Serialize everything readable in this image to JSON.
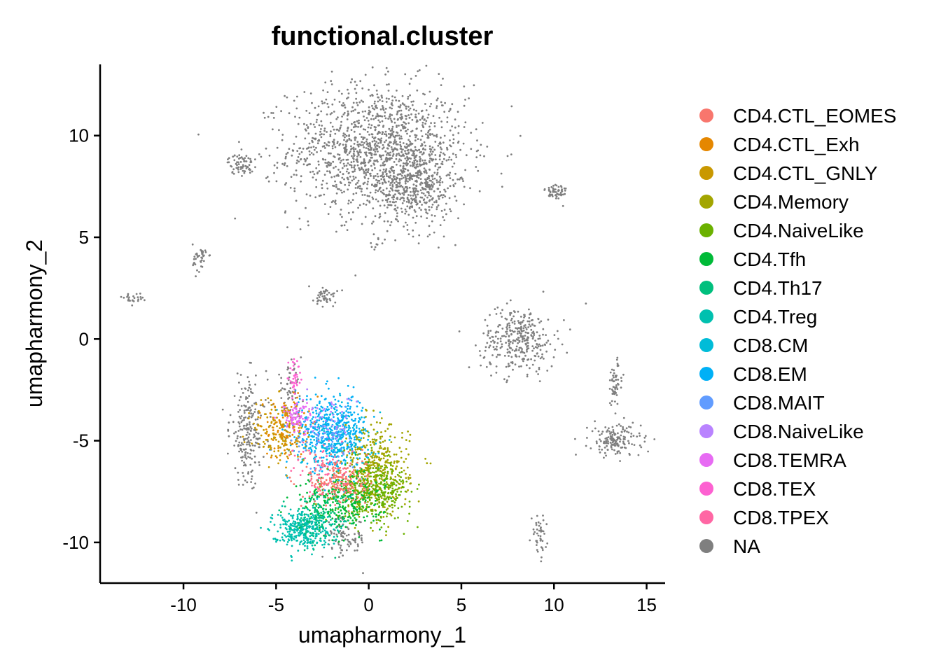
{
  "chart_data": {
    "type": "scatter",
    "title": "functional.cluster",
    "xlabel": "umapharmony_1",
    "ylabel": "umapharmony_2",
    "xlim": [
      -14.5,
      16
    ],
    "ylim": [
      -12,
      13.5
    ],
    "xticks": [
      -10,
      -5,
      0,
      5,
      10,
      15
    ],
    "yticks": [
      -10,
      -5,
      0,
      5,
      10
    ],
    "xtick_labels": [
      "-10",
      "-5",
      "0",
      "5",
      "10",
      "15"
    ],
    "ytick_labels": [
      "-10",
      "-5",
      "0",
      "5",
      "10"
    ],
    "grid": false,
    "legend_position": "right",
    "legend": [
      {
        "label": "CD4.CTL_EOMES",
        "color": "#F8766D"
      },
      {
        "label": "CD4.CTL_Exh",
        "color": "#E58700"
      },
      {
        "label": "CD4.CTL_GNLY",
        "color": "#C99800"
      },
      {
        "label": "CD4.Memory",
        "color": "#A3A500"
      },
      {
        "label": "CD4.NaiveLike",
        "color": "#6BB100"
      },
      {
        "label": "CD4.Tfh",
        "color": "#00BA38"
      },
      {
        "label": "CD4.Th17",
        "color": "#00BF7D"
      },
      {
        "label": "CD4.Treg",
        "color": "#00C0AF"
      },
      {
        "label": "CD8.CM",
        "color": "#00BCD8"
      },
      {
        "label": "CD8.EM",
        "color": "#00B0F6"
      },
      {
        "label": "CD8.MAIT",
        "color": "#619CFF"
      },
      {
        "label": "CD8.NaiveLike",
        "color": "#B983FF"
      },
      {
        "label": "CD8.TEMRA",
        "color": "#E76BF3"
      },
      {
        "label": "CD8.TEX",
        "color": "#FD61D1"
      },
      {
        "label": "CD8.TPEX",
        "color": "#FF67A4"
      },
      {
        "label": "NA",
        "color": "#7F7F7F"
      }
    ],
    "clusters": [
      {
        "label": "NA",
        "cx": 0.5,
        "cy": 9.3,
        "sx": 2.4,
        "sy": 1.6,
        "n": 1400
      },
      {
        "label": "NA",
        "cx": 2.6,
        "cy": 7.5,
        "sx": 1.0,
        "sy": 1.0,
        "n": 350
      },
      {
        "label": "NA",
        "cx": -6.9,
        "cy": 8.6,
        "sx": 0.35,
        "sy": 0.25,
        "n": 70
      },
      {
        "label": "NA",
        "cx": 10.1,
        "cy": 7.2,
        "sx": 0.3,
        "sy": 0.25,
        "n": 60
      },
      {
        "label": "NA",
        "cx": -9.1,
        "cy": 4.0,
        "sx": 0.2,
        "sy": 0.35,
        "n": 40
      },
      {
        "label": "NA",
        "cx": 0.5,
        "cy": 4.6,
        "sx": 0.2,
        "sy": 0.2,
        "n": 10
      },
      {
        "label": "NA",
        "cx": -2.3,
        "cy": 2.1,
        "sx": 0.3,
        "sy": 0.25,
        "n": 45
      },
      {
        "label": "NA",
        "cx": -12.8,
        "cy": 2.0,
        "sx": 0.3,
        "sy": 0.12,
        "n": 25
      },
      {
        "label": "NA",
        "cx": 8.1,
        "cy": 0.0,
        "sx": 1.0,
        "sy": 0.8,
        "n": 330
      },
      {
        "label": "NA",
        "cx": 13.3,
        "cy": -5.0,
        "sx": 0.7,
        "sy": 0.4,
        "n": 160
      },
      {
        "label": "NA",
        "cx": 13.3,
        "cy": -2.2,
        "sx": 0.2,
        "sy": 0.6,
        "n": 55
      },
      {
        "label": "NA",
        "cx": 9.2,
        "cy": -9.7,
        "sx": 0.2,
        "sy": 0.5,
        "n": 45
      },
      {
        "label": "NA",
        "cx": -6.5,
        "cy": -4.5,
        "sx": 0.5,
        "sy": 1.3,
        "n": 230
      },
      {
        "label": "NA",
        "cx": -4.3,
        "cy": -2.6,
        "sx": 0.35,
        "sy": 0.6,
        "n": 60
      },
      {
        "label": "NA",
        "cx": -1.3,
        "cy": -9.8,
        "sx": 0.6,
        "sy": 0.5,
        "n": 90
      },
      {
        "label": "CD8.EM",
        "cx": -2.0,
        "cy": -4.6,
        "sx": 1.0,
        "sy": 0.9,
        "n": 520
      },
      {
        "label": "CD8.CM",
        "cx": -1.5,
        "cy": -5.2,
        "sx": 1.0,
        "sy": 1.0,
        "n": 150
      },
      {
        "label": "CD4.Memory",
        "cx": 0.4,
        "cy": -6.5,
        "sx": 0.9,
        "sy": 1.1,
        "n": 420
      },
      {
        "label": "CD4.NaiveLike",
        "cx": 0.3,
        "cy": -7.5,
        "sx": 1.0,
        "sy": 0.7,
        "n": 360
      },
      {
        "label": "CD4.Tfh",
        "cx": -1.5,
        "cy": -8.0,
        "sx": 1.1,
        "sy": 0.7,
        "n": 280
      },
      {
        "label": "CD4.CTL_EOMES",
        "cx": -1.7,
        "cy": -7.0,
        "sx": 0.8,
        "sy": 0.6,
        "n": 200
      },
      {
        "label": "CD4.CTL_GNLY",
        "cx": -4.8,
        "cy": -4.6,
        "sx": 0.7,
        "sy": 0.9,
        "n": 160
      },
      {
        "label": "CD4.CTL_Exh",
        "cx": -4.4,
        "cy": -4.3,
        "sx": 0.6,
        "sy": 0.8,
        "n": 100
      },
      {
        "label": "CD4.Treg",
        "cx": -3.6,
        "cy": -9.3,
        "sx": 0.8,
        "sy": 0.45,
        "n": 340
      },
      {
        "label": "CD4.Th17",
        "cx": -2.6,
        "cy": -8.7,
        "sx": 0.8,
        "sy": 0.6,
        "n": 120
      },
      {
        "label": "CD8.TEMRA",
        "cx": -3.9,
        "cy": -3.8,
        "sx": 0.4,
        "sy": 0.4,
        "n": 80
      },
      {
        "label": "CD8.TEX",
        "cx": -4.0,
        "cy": -2.0,
        "sx": 0.2,
        "sy": 0.5,
        "n": 40
      },
      {
        "label": "CD8.TPEX",
        "cx": -2.5,
        "cy": -6.3,
        "sx": 0.8,
        "sy": 0.7,
        "n": 60
      },
      {
        "label": "CD8.MAIT",
        "cx": -2.4,
        "cy": -5.0,
        "sx": 0.8,
        "sy": 0.7,
        "n": 60
      },
      {
        "label": "CD8.NaiveLike",
        "cx": -2.3,
        "cy": -4.0,
        "sx": 0.7,
        "sy": 0.6,
        "n": 50
      }
    ]
  }
}
